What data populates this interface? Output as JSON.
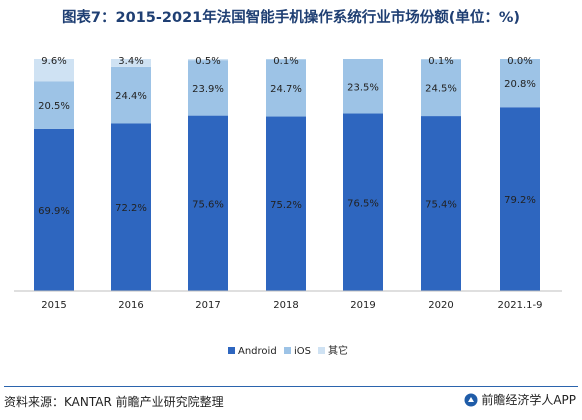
{
  "title": "图表7：2015-2021年法国智能手机操作系统行业市场份额(单位：%)",
  "chart_data": {
    "type": "bar",
    "stacked": true,
    "categories": [
      "2015",
      "2016",
      "2017",
      "2018",
      "2019",
      "2020",
      "2021.1-9"
    ],
    "series": [
      {
        "name": "Android",
        "color": "#2e66bf",
        "values": [
          69.9,
          72.2,
          75.6,
          75.2,
          76.5,
          75.4,
          79.2
        ],
        "labels": [
          "69.9%",
          "72.2%",
          "75.6%",
          "75.2%",
          "76.5%",
          "75.4%",
          "79.2%"
        ]
      },
      {
        "name": "iOS",
        "color": "#9dc3e6",
        "values": [
          20.5,
          24.4,
          23.9,
          24.7,
          23.5,
          24.5,
          20.8
        ],
        "labels": [
          "20.5%",
          "24.4%",
          "23.9%",
          "24.7%",
          "23.5%",
          "24.5%",
          "20.8%"
        ]
      },
      {
        "name": "其它",
        "color": "#cfe2f3",
        "values": [
          9.6,
          3.4,
          0.5,
          0.1,
          0.0,
          0.1,
          0.0
        ],
        "labels": [
          "9.6%",
          "3.4%",
          "0.5%",
          "0.1%",
          "",
          "0.1%",
          "0.0%"
        ]
      }
    ],
    "ylim": [
      0,
      100
    ],
    "grid": false,
    "legend_position": "bottom"
  },
  "footer": {
    "source": "资料来源：KANTAR 前瞻产业研究院整理",
    "brand": "前瞻经济学人APP"
  }
}
